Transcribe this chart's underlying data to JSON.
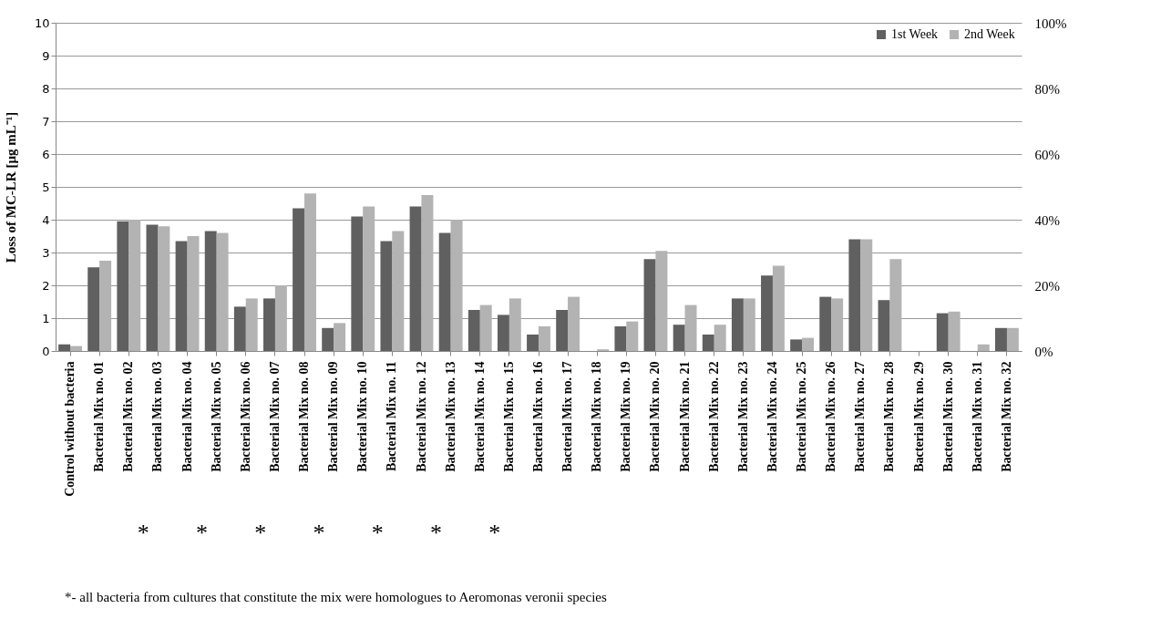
{
  "chart_data": {
    "type": "bar",
    "ylabel": "Loss of MC-LR  [µg mL⁻¹]",
    "categories": [
      "Control without bacteria",
      "Bacterial Mix no. 01",
      "Bacterial Mix no. 02",
      "Bacterial Mix no. 03",
      "Bacterial Mix no. 04",
      "Bacterial Mix no. 05",
      "Bacterial Mix no. 06",
      "Bacterial Mix no. 07",
      "Bacterial Mix no. 08",
      "Bacterial Mix no. 09",
      "Bacterial Mix no. 10",
      "Bacterial Mix no. 11",
      "Bacterial Mix no. 12",
      "Bacterial Mix no. 13",
      "Bacterial Mix no. 14",
      "Bacterial Mix no. 15",
      "Bacterial Mix no. 16",
      "Bacterial Mix no. 17",
      "Bacterial Mix no. 18",
      "Bacterial Mix no. 19",
      "Bacterial Mix no. 20",
      "Bacterial Mix no. 21",
      "Bacterial Mix no. 22",
      "Bacterial Mix no. 23",
      "Bacterial Mix no. 24",
      "Bacterial Mix no. 25",
      "Bacterial Mix no. 26",
      "Bacterial Mix no. 27",
      "Bacterial Mix no. 28",
      "Bacterial Mix no. 29",
      "Bacterial Mix no. 30",
      "Bacterial Mix no. 31",
      "Bacterial Mix no. 32"
    ],
    "series": [
      {
        "name": "1st Week",
        "color": "#606060",
        "values": [
          0.2,
          2.55,
          3.95,
          3.85,
          3.35,
          3.65,
          1.35,
          1.6,
          4.35,
          0.7,
          4.1,
          3.35,
          4.4,
          3.6,
          1.25,
          1.1,
          0.5,
          1.25,
          0,
          0.75,
          2.8,
          0.8,
          0.5,
          1.6,
          2.3,
          0.35,
          1.65,
          3.4,
          1.55,
          0,
          1.15,
          0,
          0.7
        ]
      },
      {
        "name": "2nd Week",
        "color": "#b3b3b3",
        "values": [
          0.15,
          2.75,
          4.0,
          3.8,
          3.5,
          3.6,
          1.6,
          2.0,
          4.8,
          0.85,
          4.4,
          3.65,
          4.75,
          4.0,
          1.4,
          1.6,
          0.75,
          1.65,
          0.05,
          0.9,
          3.05,
          1.4,
          0.8,
          1.6,
          2.6,
          0.4,
          1.6,
          3.4,
          2.8,
          0,
          1.2,
          0.2,
          0.7
        ]
      }
    ],
    "ylim": [
      0,
      10
    ],
    "yticks": [
      0,
      1,
      2,
      3,
      4,
      5,
      6,
      7,
      8,
      9,
      10
    ],
    "y2lim": [
      0,
      100
    ],
    "y2ticks": [
      {
        "value": 0,
        "label": "0%"
      },
      {
        "value": 20,
        "label": "20%"
      },
      {
        "value": 40,
        "label": "40%"
      },
      {
        "value": 60,
        "label": "60%"
      },
      {
        "value": 80,
        "label": "80%"
      },
      {
        "value": 100,
        "label": "100%"
      }
    ],
    "grid": "y",
    "legend": "top right",
    "annotations": [
      "*",
      "*",
      "*",
      "*",
      "*",
      "*",
      "*",
      "*- all bacteria from cultures that constitute the mix were homologues to Aeromonas veronii species"
    ]
  }
}
